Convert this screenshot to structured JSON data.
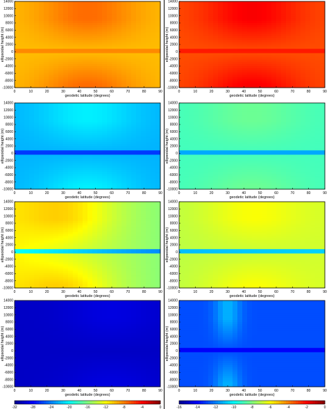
{
  "colormap": [
    "#00008f",
    "#0000ff",
    "#0080ff",
    "#00ffff",
    "#80ff80",
    "#ffff00",
    "#ff8000",
    "#ff0000",
    "#800000"
  ],
  "chart_data": [
    {
      "type": "heatmap",
      "xlabel": "geodetic latitude (degrees)",
      "ylabel": "ellipsoidal height (m)",
      "x_ticks": [
        "0",
        "10",
        "20",
        "30",
        "40",
        "50",
        "60",
        "70",
        "80",
        "90"
      ],
      "y_ticks": [
        "-10000",
        "-8000",
        "-6000",
        "-4000",
        "-2000",
        "0",
        "2000",
        "4000",
        "6000",
        "8000",
        "10000",
        "12000",
        "14000"
      ],
      "xlim": [
        0,
        90
      ],
      "ylim": [
        -10000,
        14000
      ],
      "field": {
        "base": 0.69,
        "amp": 0.08,
        "peak_lat": 45,
        "width": 30,
        "spike": 0.05,
        "trend": 0
      }
    },
    {
      "type": "heatmap",
      "xlabel": "geodetic latitude (degrees)",
      "ylabel": "ellipsoidal height (m)",
      "x_ticks": [
        "0",
        "10",
        "20",
        "30",
        "40",
        "50",
        "60",
        "70",
        "80",
        "90"
      ],
      "y_ticks": [
        "-10000",
        "-8000",
        "-6000",
        "-4000",
        "-2000",
        "0",
        "2000",
        "4000",
        "6000",
        "8000",
        "10000",
        "12000",
        "14000"
      ],
      "xlim": [
        0,
        90
      ],
      "ylim": [
        -10000,
        14000
      ],
      "field": {
        "base": 0.8,
        "amp": 0.08,
        "peak_lat": 45,
        "width": 30,
        "spike": 0.05,
        "trend": 0
      }
    },
    {
      "type": "heatmap",
      "xlabel": "geodetic latitude (degrees)",
      "ylabel": "ellipsoidal height (m)",
      "x_ticks": [
        "0",
        "10",
        "20",
        "30",
        "40",
        "50",
        "60",
        "70",
        "80",
        "90"
      ],
      "y_ticks": [
        "-10000",
        "-8000",
        "-6000",
        "-4000",
        "-2000",
        "0",
        "2000",
        "4000",
        "6000",
        "8000",
        "10000",
        "12000",
        "14000"
      ],
      "xlim": [
        0,
        90
      ],
      "ylim": [
        -10000,
        14000
      ],
      "field": {
        "base": 0.3,
        "amp": 0.06,
        "peak_lat": 45,
        "width": 30,
        "spike": -0.12,
        "trend": 0
      }
    },
    {
      "type": "heatmap",
      "xlabel": "geodetic latitude (degrees)",
      "ylabel": "ellipsoidal height (m)",
      "x_ticks": [
        "0",
        "10",
        "20",
        "30",
        "40",
        "50",
        "60",
        "70",
        "80",
        "90"
      ],
      "y_ticks": [
        "-10000",
        "-8000",
        "-6000",
        "-4000",
        "-2000",
        "0",
        "2000",
        "4000",
        "6000",
        "8000",
        "10000",
        "12000",
        "14000"
      ],
      "xlim": [
        0,
        90
      ],
      "ylim": [
        -10000,
        14000
      ],
      "field": {
        "base": 0.44,
        "amp": 0.04,
        "peak_lat": 45,
        "width": 30,
        "spike": -0.15,
        "trend": 0
      }
    },
    {
      "type": "heatmap",
      "xlabel": "geodetic latitude (degrees)",
      "ylabel": "ellipsoidal height (m)",
      "x_ticks": [
        "0",
        "10",
        "20",
        "30",
        "40",
        "50",
        "60",
        "70",
        "80",
        "90"
      ],
      "y_ticks": [
        "-10000",
        "-8000",
        "-6000",
        "-4000",
        "-2000",
        "0",
        "2000",
        "4000",
        "6000",
        "8000",
        "10000",
        "12000",
        "14000"
      ],
      "xlim": [
        0,
        90
      ],
      "ylim": [
        -10000,
        14000
      ],
      "field": {
        "base": 0.63,
        "amp": 0.08,
        "peak_lat": 32,
        "width": 28,
        "spike": -0.25,
        "trend": -0.12
      }
    },
    {
      "type": "heatmap",
      "xlabel": "geodetic latitude (degrees)",
      "ylabel": "ellipsoidal height (m)",
      "x_ticks": [
        "0",
        "10",
        "20",
        "30",
        "40",
        "50",
        "60",
        "70",
        "80",
        "90"
      ],
      "y_ticks": [
        "-10000",
        "-8000",
        "-6000",
        "-4000",
        "-2000",
        "0",
        "2000",
        "4000",
        "6000",
        "8000",
        "10000",
        "12000",
        "14000"
      ],
      "xlim": [
        0,
        90
      ],
      "ylim": [
        -10000,
        14000
      ],
      "field": {
        "base": 0.56,
        "amp": 0.05,
        "peak_lat": 45,
        "width": 30,
        "spike": -0.25,
        "trend": 0.02
      }
    },
    {
      "type": "heatmap",
      "xlabel": "geodetic latitude (degrees)",
      "ylabel": "ellipsoidal height (m)",
      "x_ticks": [
        "0",
        "10",
        "20",
        "30",
        "40",
        "50",
        "60",
        "70",
        "80",
        "90"
      ],
      "y_ticks": [
        "-10000",
        "-8000",
        "-6000",
        "-4000",
        "-2000",
        "0",
        "2000",
        "4000",
        "6000",
        "8000",
        "10000",
        "12000",
        "14000"
      ],
      "xlim": [
        0,
        90
      ],
      "ylim": [
        -10000,
        14000
      ],
      "field": {
        "base": 0.06,
        "amp": 0.03,
        "peak_lat": 60,
        "width": 30,
        "spike": 0.0,
        "trend": 0
      }
    },
    {
      "type": "heatmap",
      "xlabel": "geodetic latitude (degrees)",
      "ylabel": "ellipsoidal height (m)",
      "x_ticks": [
        "0",
        "10",
        "20",
        "30",
        "40",
        "50",
        "60",
        "70",
        "80",
        "90"
      ],
      "y_ticks": [
        "-10000",
        "-8000",
        "-6000",
        "-4000",
        "-2000",
        "0",
        "2000",
        "4000",
        "6000",
        "8000",
        "10000",
        "12000",
        "14000"
      ],
      "xlim": [
        0,
        90
      ],
      "ylim": [
        -10000,
        14000
      ],
      "field": {
        "base": 0.2,
        "amp": 0.1,
        "peak_lat": 30,
        "width": 8,
        "spike": -0.08,
        "trend": 0
      }
    }
  ],
  "colorbars": [
    {
      "range": [
        -32,
        0
      ],
      "tick_labels": [
        "-32",
        "-28",
        "-24",
        "-20",
        "-16",
        "-12",
        "-8",
        "-4",
        "0"
      ]
    },
    {
      "range": [
        -16,
        0
      ],
      "tick_labels": [
        "-16",
        "-14",
        "-12",
        "-10",
        "-8",
        "-6",
        "-4",
        "-2",
        "0"
      ]
    }
  ]
}
